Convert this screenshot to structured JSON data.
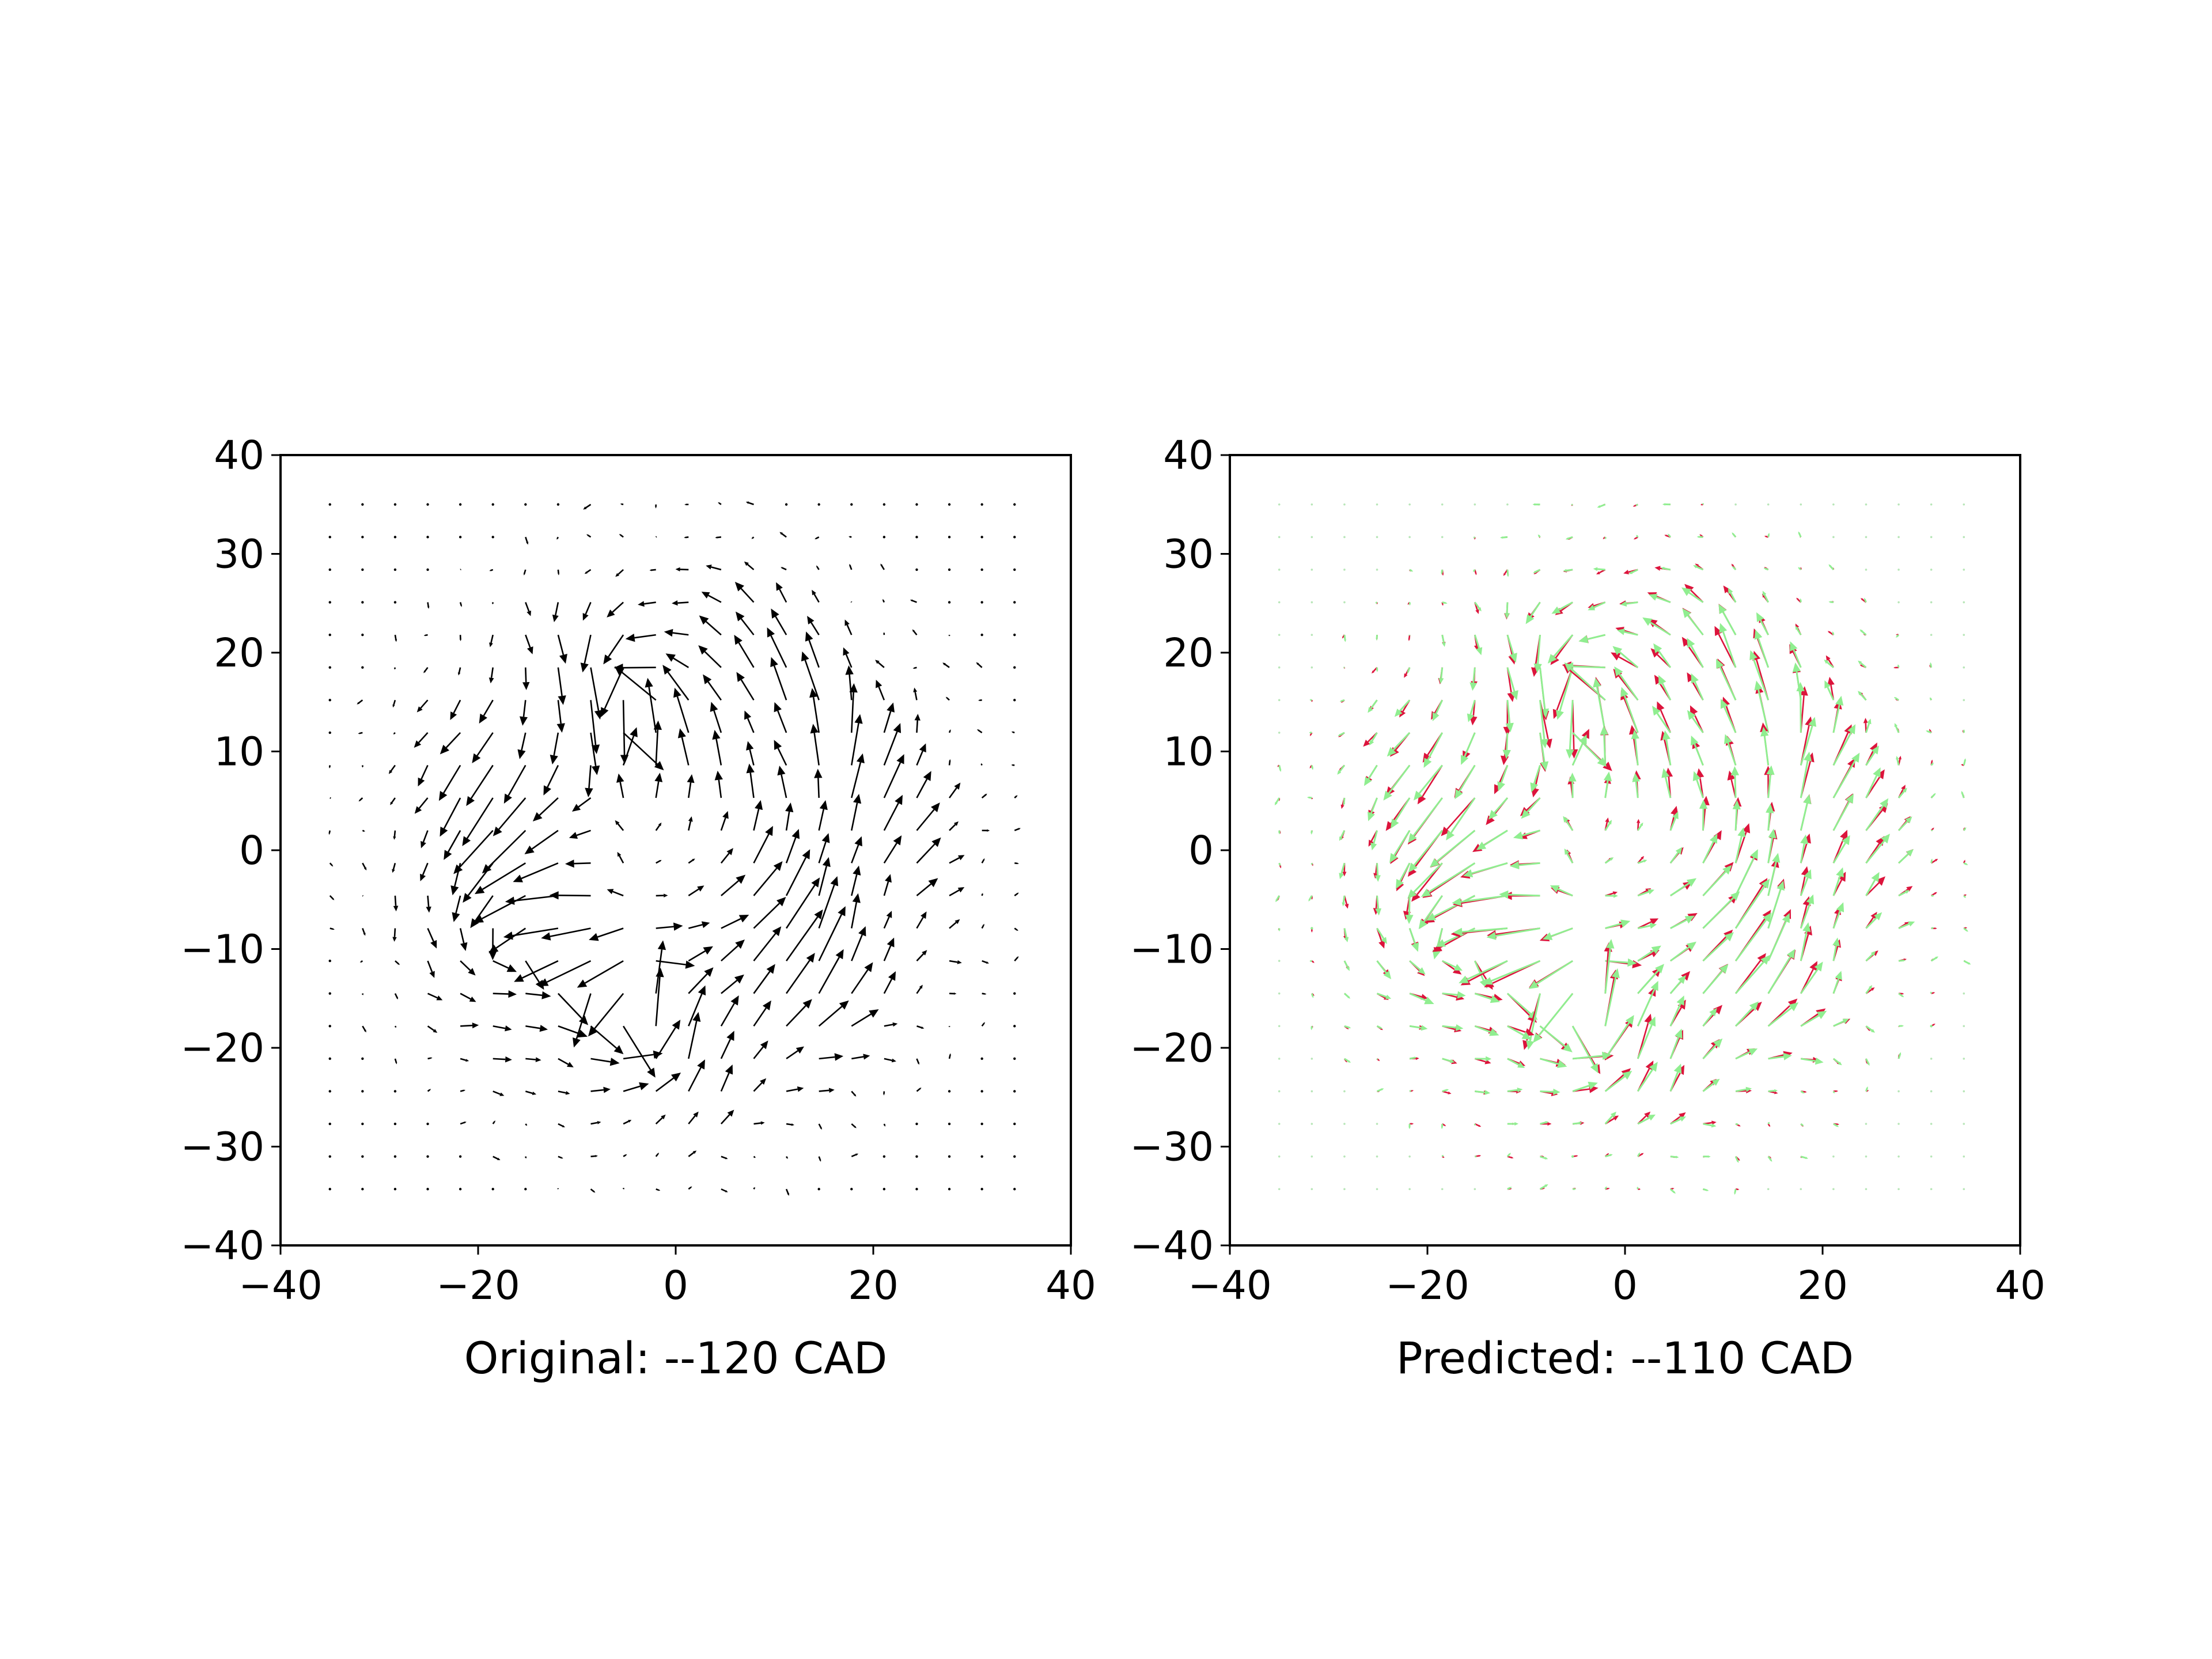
{
  "chart_data": [
    {
      "type": "quiver",
      "xlabel": "Original: --120 CAD",
      "xlim": [
        -40,
        40
      ],
      "ylim": [
        -40,
        40
      ],
      "xticks": [
        "−40",
        "−20",
        "0",
        "20",
        "40"
      ],
      "yticks": [
        "40",
        "30",
        "20",
        "10",
        "0",
        "−10",
        "−20",
        "−30",
        "−40"
      ],
      "grid_step": 3.3,
      "grid_extent": [
        -35,
        35
      ],
      "field": {
        "radius": 36.5,
        "swirl": 1.0,
        "magnitude": 1.0
      },
      "series": [
        {
          "color": "#000000",
          "variant": "original"
        }
      ]
    },
    {
      "type": "quiver",
      "xlabel": "Predicted: --110 CAD",
      "xlim": [
        -40,
        40
      ],
      "ylim": [
        -40,
        40
      ],
      "xticks": [
        "−40",
        "−20",
        "0",
        "20",
        "40"
      ],
      "yticks": [
        "40",
        "30",
        "20",
        "10",
        "0",
        "−10",
        "−20",
        "−30",
        "−40"
      ],
      "grid_step": 3.3,
      "grid_extent": [
        -35,
        35
      ],
      "field": {
        "radius": 36.5,
        "swirl": 1.0,
        "magnitude": 1.0
      },
      "series": [
        {
          "color": "#90ee90",
          "variant": "predicted"
        },
        {
          "color": "#dc143c",
          "variant": "reference"
        }
      ]
    }
  ]
}
